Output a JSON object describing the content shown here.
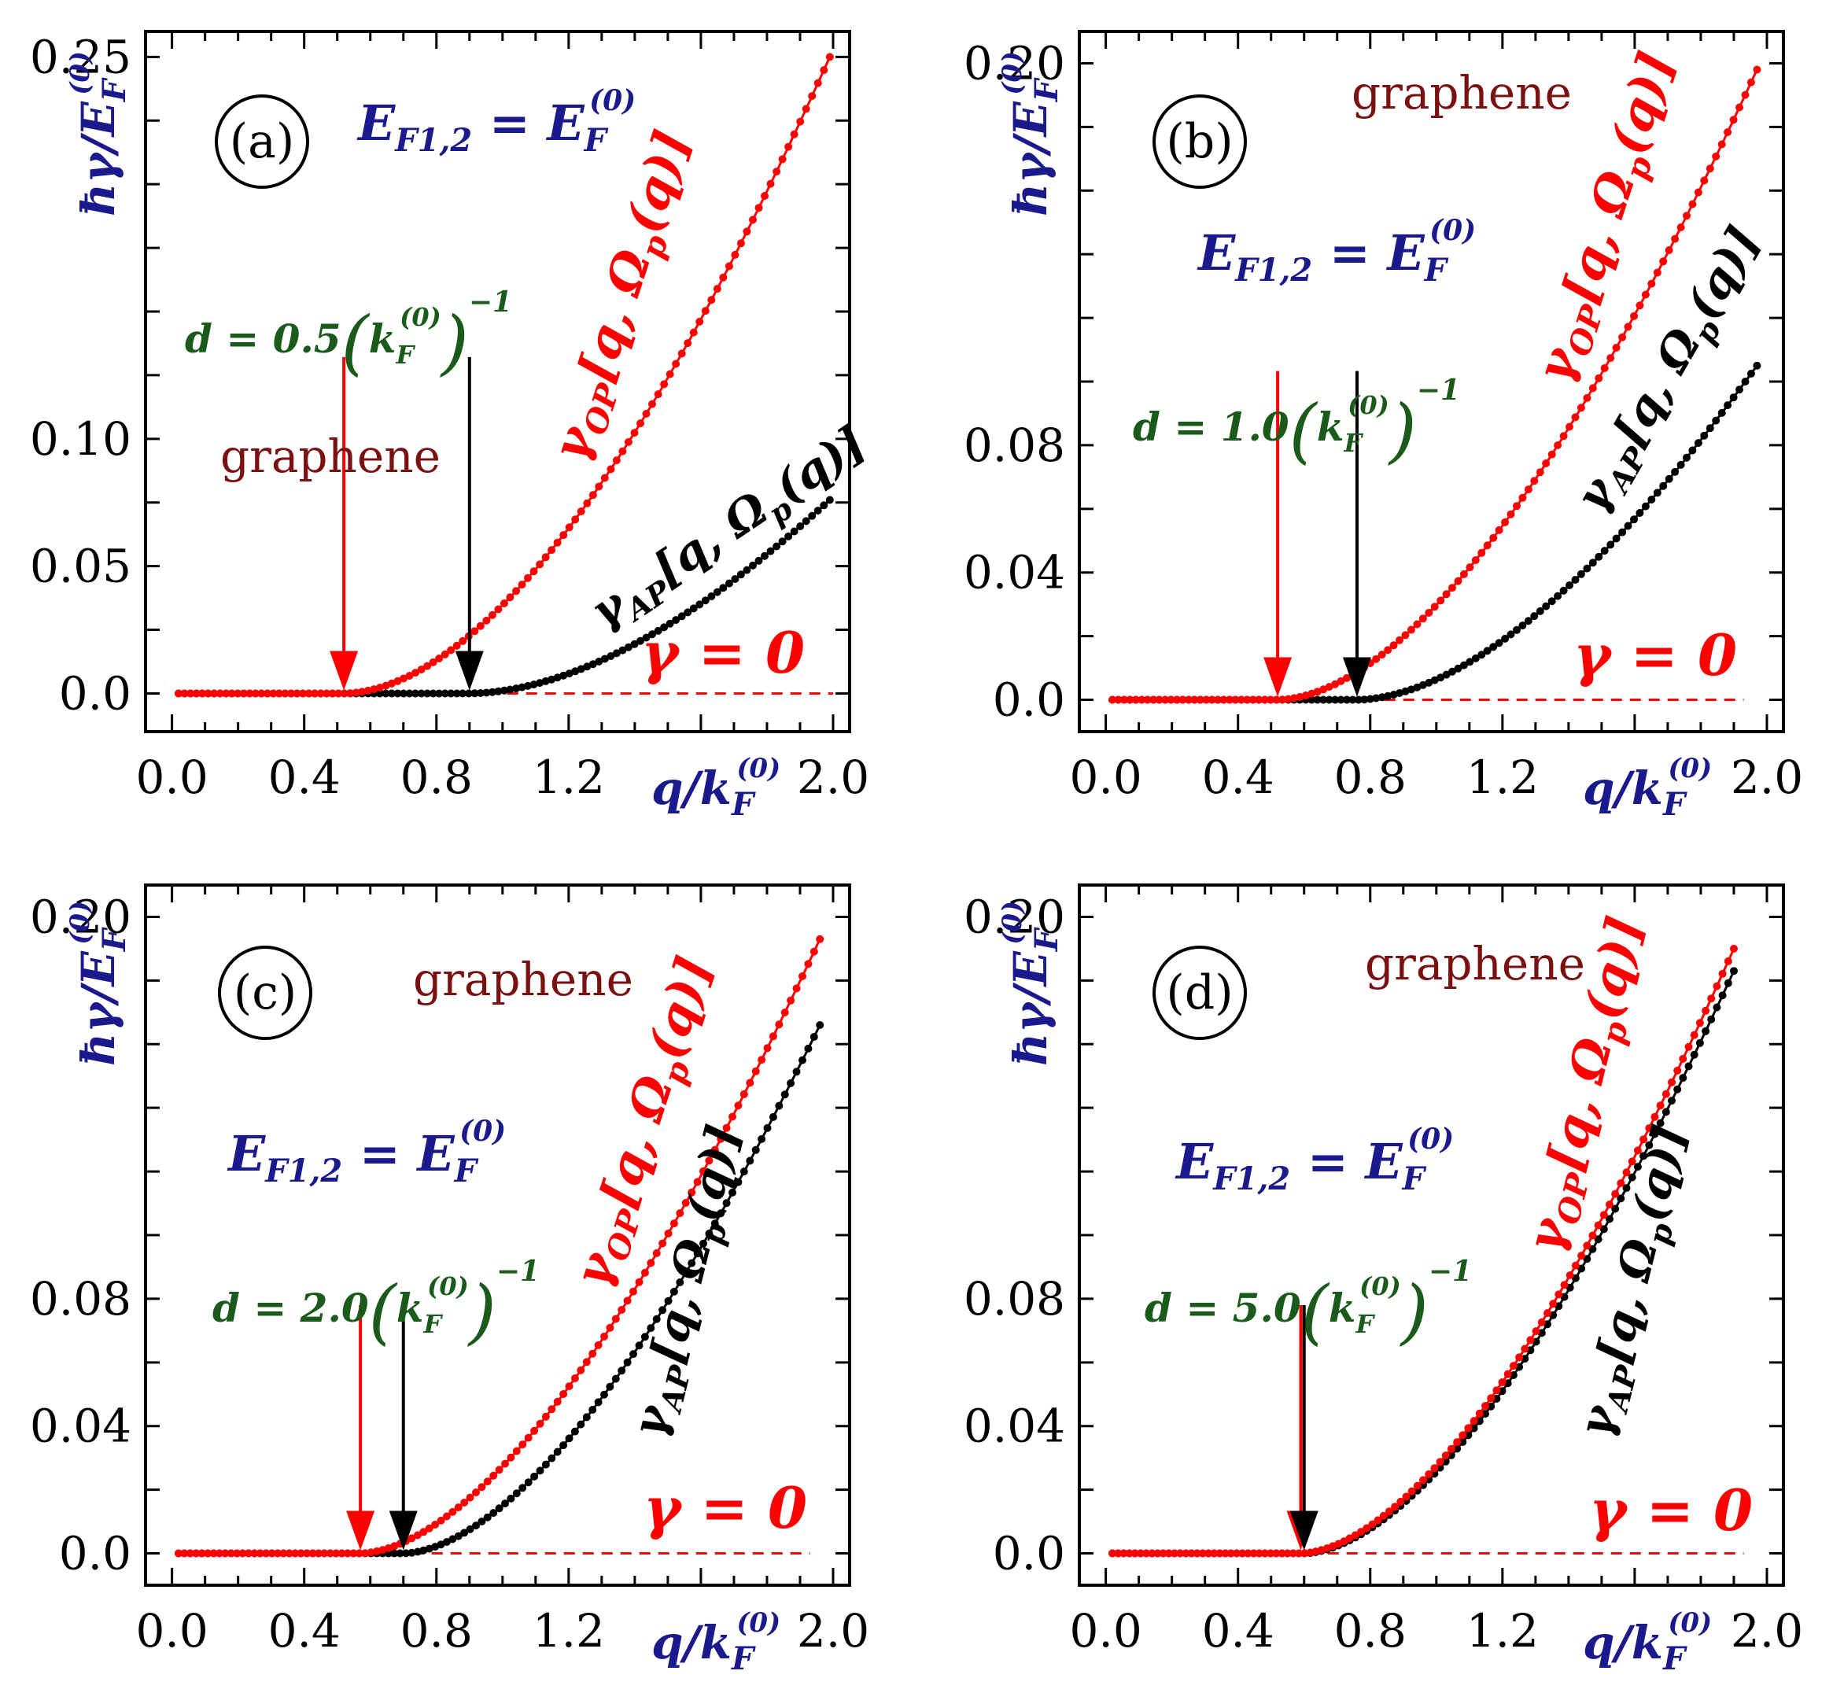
{
  "colors": {
    "op": "#ff0000",
    "ap": "#000000",
    "navy": "#1a1a8c",
    "green": "#1a5a1a",
    "brown": "#7a1010"
  },
  "common": {
    "x_ticks": [
      "0.0",
      "0.4",
      "0.8",
      "1.2",
      "2.0"
    ],
    "x_tick_values": [
      0.0,
      0.4,
      0.8,
      1.2,
      2.0
    ],
    "xlabel": "q/k_F^(0)",
    "ylabel": "ħγ/E_F^(0)",
    "ef_label": "E_F1,2 = E_F^(0)",
    "graphene": "graphene",
    "gamma_zero": "γ = 0",
    "op_label": "γ_OP[q, Ω_p(q)]",
    "ap_label": "γ_AP[q, Ω_p(q)]"
  },
  "chart_data": [
    {
      "type": "scatter",
      "panel": "(a)",
      "d_label": "d = 0.5(k_F^(0))^−1",
      "xlim": [
        -0.08,
        2.05
      ],
      "ylim": [
        -0.015,
        0.26
      ],
      "y_ticks": [
        "0.0",
        "0.05",
        "0.10",
        "0.25"
      ],
      "y_tick_values": [
        0.0,
        0.05,
        0.1,
        0.25
      ],
      "op_threshold": 0.52,
      "ap_threshold": 0.9,
      "series": [
        {
          "name": "γ_OP[q, Ω_p(q)]",
          "x_end": 1.99,
          "threshold": 0.52,
          "y_end": 0.25,
          "power": 1.85
        },
        {
          "name": "γ_AP[q, Ω_p(q)]",
          "x_end": 1.99,
          "threshold": 0.9,
          "y_end": 0.076,
          "power": 1.85
        },
        {
          "name": "γ = 0",
          "x": [
            0.5,
            2.0
          ],
          "y": [
            0,
            0
          ]
        }
      ]
    },
    {
      "type": "scatter",
      "panel": "(b)",
      "d_label": "d = 1.0(k_F^(0))^−1",
      "xlim": [
        -0.08,
        2.05
      ],
      "ylim": [
        -0.01,
        0.21
      ],
      "y_ticks": [
        "0.0",
        "0.04",
        "0.08",
        "0.20"
      ],
      "y_tick_values": [
        0.0,
        0.04,
        0.08,
        0.2
      ],
      "op_threshold": 0.52,
      "ap_threshold": 0.76,
      "series": [
        {
          "name": "γ_OP[q, Ω_p(q)]",
          "x_end": 1.97,
          "threshold": 0.52,
          "y_end": 0.198,
          "power": 1.8
        },
        {
          "name": "γ_AP[q, Ω_p(q)]",
          "x_end": 1.97,
          "threshold": 0.76,
          "y_end": 0.105,
          "power": 1.8
        },
        {
          "name": "γ = 0",
          "x": [
            0.5,
            1.93
          ],
          "y": [
            0,
            0
          ]
        }
      ]
    },
    {
      "type": "scatter",
      "panel": "(c)",
      "d_label": "d = 2.0(k_F^(0))^−1",
      "xlim": [
        -0.08,
        2.05
      ],
      "ylim": [
        -0.01,
        0.21
      ],
      "y_ticks": [
        "0.0",
        "0.04",
        "0.08",
        "0.20"
      ],
      "y_tick_values": [
        0.0,
        0.04,
        0.08,
        0.2
      ],
      "op_threshold": 0.57,
      "ap_threshold": 0.7,
      "series": [
        {
          "name": "γ_OP[q, Ω_p(q)]",
          "x_end": 1.96,
          "threshold": 0.57,
          "y_end": 0.193,
          "power": 1.75
        },
        {
          "name": "γ_AP[q, Ω_p(q)]",
          "x_end": 1.96,
          "threshold": 0.7,
          "y_end": 0.166,
          "power": 1.75
        },
        {
          "name": "γ = 0",
          "x": [
            0.5,
            1.93
          ],
          "y": [
            0,
            0
          ]
        }
      ]
    },
    {
      "type": "scatter",
      "panel": "(d)",
      "d_label": "d = 5.0(k_F^(0))^−1",
      "xlim": [
        -0.08,
        2.05
      ],
      "ylim": [
        -0.01,
        0.21
      ],
      "y_ticks": [
        "0.0",
        "0.04",
        "0.08",
        "0.20"
      ],
      "y_tick_values": [
        0.0,
        0.04,
        0.08,
        0.2
      ],
      "op_threshold": 0.59,
      "ap_threshold": 0.6,
      "series": [
        {
          "name": "γ_OP[q, Ω_p(q)]",
          "x_end": 1.9,
          "threshold": 0.59,
          "y_end": 0.19,
          "power": 1.75
        },
        {
          "name": "γ_AP[q, Ω_p(q)]",
          "x_end": 1.9,
          "threshold": 0.6,
          "y_end": 0.183,
          "power": 1.75
        },
        {
          "name": "γ = 0",
          "x": [
            0.5,
            1.93
          ],
          "y": [
            0,
            0
          ]
        }
      ]
    }
  ]
}
